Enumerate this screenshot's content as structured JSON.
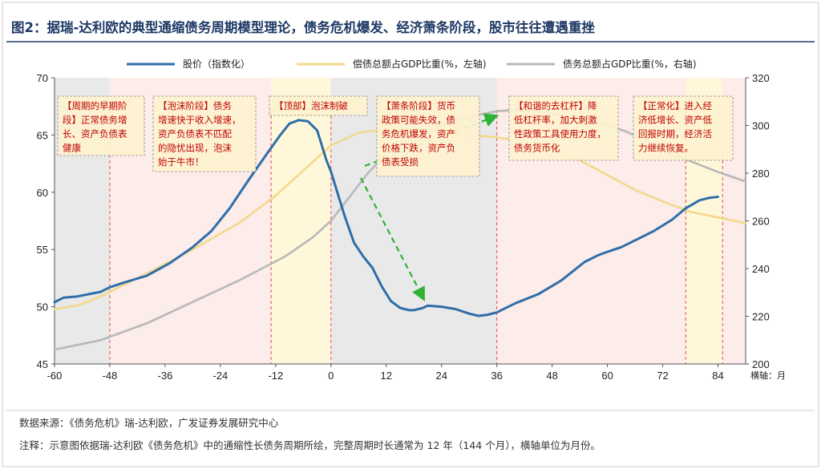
{
  "title": "图2：据瑞-达利欧的典型通缩债务周期模型理论，债务危机爆发、经济萧条阶段，股市往往遭遇重挫",
  "source": "数据来源：《债务危机》瑞-达利欧，广发证券发展研究中心",
  "footnote": "注释：示意图依据瑞-达利欧《债务危机》中的通缩性长债务周期所绘，完整周期时长通常为 12 年（144 个月），横轴单位为月份。",
  "colors": {
    "title": "#1f3a66",
    "stock": "#2f6ea8",
    "debt_service": "#f2d98a",
    "debt_total": "#b8b8b8",
    "shade_gray": "#e9e9e9",
    "shade_pink": "#fcecea",
    "shade_yellow": "#fff7d9",
    "annotation": "#c00000",
    "arrow": "#2eb135"
  },
  "chart_data": {
    "type": "line",
    "xlabel": "横轴：月",
    "x_ticks": [
      -60,
      -48,
      -36,
      -24,
      -12,
      0,
      12,
      24,
      36,
      48,
      60,
      72,
      84
    ],
    "xlim": [
      -60,
      90
    ],
    "y_left": {
      "lim": [
        45,
        70
      ],
      "ticks": [
        45,
        50,
        55,
        60,
        65,
        70
      ]
    },
    "y_right": {
      "lim": [
        200,
        320
      ],
      "ticks": [
        200,
        220,
        240,
        260,
        280,
        300,
        320
      ]
    },
    "legend_position": "top",
    "series": [
      {
        "name": "股价（指数化）",
        "axis": "left",
        "color": "#2f6ea8",
        "x": [
          -60,
          -58,
          -55,
          -50,
          -48,
          -45,
          -40,
          -35,
          -30,
          -26,
          -22,
          -18,
          -14,
          -11,
          -9,
          -7,
          -5,
          -3,
          -1,
          0,
          1,
          3,
          5,
          7,
          9,
          11,
          13,
          15,
          16,
          17,
          18,
          20,
          21,
          24,
          27,
          30,
          32,
          34,
          36,
          40,
          45,
          50,
          55,
          58,
          60,
          63,
          66,
          70,
          74,
          77,
          80,
          82,
          84
        ],
        "y": [
          50.4,
          50.8,
          50.9,
          51.3,
          51.7,
          52.1,
          52.7,
          53.8,
          55.2,
          56.6,
          58.6,
          61,
          63.3,
          65,
          66,
          66.3,
          66.2,
          65.4,
          62.8,
          61.8,
          60.5,
          57.9,
          55.6,
          54.4,
          53.4,
          51.8,
          50.5,
          49.9,
          49.8,
          49.7,
          49.7,
          49.9,
          50.1,
          50,
          49.8,
          49.4,
          49.2,
          49.3,
          49.5,
          50.3,
          51.1,
          52.3,
          53.9,
          54.5,
          54.8,
          55.2,
          55.8,
          56.6,
          57.6,
          58.6,
          59.3,
          59.5,
          59.6
        ]
      },
      {
        "name": "偿债总额占GDP比重(%，左轴)",
        "axis": "left",
        "color": "#f2d98a",
        "x": [
          -60,
          -55,
          -50,
          -45,
          -40,
          -30,
          -20,
          -12,
          -6,
          0,
          6,
          12,
          18,
          24,
          30,
          36,
          42,
          48,
          54,
          60,
          66,
          72,
          78,
          84,
          90
        ],
        "y": [
          49.8,
          50.1,
          50.9,
          51.9,
          52.9,
          55,
          57.3,
          59.7,
          61.9,
          64.1,
          65.2,
          65.5,
          65.5,
          65.2,
          65,
          64.8,
          64.4,
          63.8,
          62.8,
          61.5,
          60.2,
          59.2,
          58.3,
          57.8,
          57.3
        ]
      },
      {
        "name": "债务总额占GDP比重(%，右轴)",
        "axis": "right",
        "color": "#b8b8b8",
        "x": [
          -60,
          -50,
          -40,
          -30,
          -20,
          -10,
          -4,
          0,
          4,
          8,
          12,
          16,
          20,
          24,
          28,
          32,
          36,
          40,
          44,
          48,
          52,
          56,
          60,
          64,
          68,
          72,
          78,
          84,
          90
        ],
        "y": [
          206,
          210,
          217,
          226,
          235,
          245,
          253,
          260,
          270,
          280,
          288,
          293,
          297,
          300,
          302.5,
          304.5,
          306,
          306.5,
          306,
          305,
          303.5,
          302,
          300,
          297.5,
          294,
          290,
          285,
          280.5,
          276.5
        ]
      }
    ],
    "annotations": [
      {
        "id": "early",
        "lines": [
          "【周期的早期阶",
          "段】正常债务增",
          "长、资产负债表",
          "健康"
        ]
      },
      {
        "id": "bubble",
        "lines": [
          "【泡沫阶段】债务",
          "增速快于收入增速，",
          "资产负债表不匹配",
          "的隐忧出现，泡沫",
          "始于牛市！"
        ]
      },
      {
        "id": "top",
        "lines": [
          "【顶部】泡沫制破"
        ]
      },
      {
        "id": "depression",
        "lines": [
          "【萧条阶段】货币",
          "政策可能失效，债",
          "务危机爆发，资产",
          "价格下跌，资产负",
          "债表受损"
        ]
      },
      {
        "id": "deleveraging",
        "lines": [
          "【和谐的去杠杆】降",
          "低杠杆率，加大刺激",
          "性政策工具使用力度，",
          "债务货币化"
        ]
      },
      {
        "id": "normal",
        "lines": [
          "【正常化】进入经",
          "济低增长、资产低",
          "回报时期，经济活",
          "力继续恢复。"
        ]
      }
    ]
  }
}
